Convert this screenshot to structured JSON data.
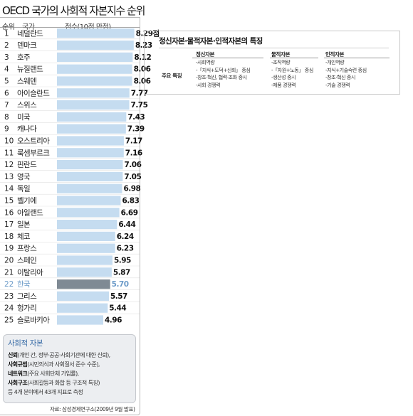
{
  "chart_data": {
    "type": "bar",
    "title": "OECD 국가의 사회적 자본지수 순위",
    "rank_header": "순위",
    "country_header": "국가",
    "score_header": "점수(10점 만점)",
    "xlim": [
      0,
      10
    ],
    "bar_color": "#c5dcf0",
    "highlight_color": "#7f8a94",
    "highlight_text_color": "#6e9cc9",
    "highlight_country": "한국",
    "rows": [
      {
        "rank": "1",
        "country": "네덜란드",
        "value": 8.29,
        "label": "8.29점"
      },
      {
        "rank": "2",
        "country": "덴마크",
        "value": 8.23,
        "label": "8.23"
      },
      {
        "rank": "3",
        "country": "호주",
        "value": 8.12,
        "label": "8.12"
      },
      {
        "rank": "4",
        "country": "뉴질랜드",
        "value": 8.06,
        "label": "8.06"
      },
      {
        "rank": "5",
        "country": "스웨덴",
        "value": 8.06,
        "label": "8.06"
      },
      {
        "rank": "6",
        "country": "아이슬란드",
        "value": 7.77,
        "label": "7.77"
      },
      {
        "rank": "7",
        "country": "스위스",
        "value": 7.75,
        "label": "7.75"
      },
      {
        "rank": "8",
        "country": "미국",
        "value": 7.43,
        "label": "7.43"
      },
      {
        "rank": "9",
        "country": "캐나다",
        "value": 7.39,
        "label": "7.39"
      },
      {
        "rank": "10",
        "country": "오스트리아",
        "value": 7.17,
        "label": "7.17"
      },
      {
        "rank": "11",
        "country": "룩셈부르크",
        "value": 7.16,
        "label": "7.16"
      },
      {
        "rank": "12",
        "country": "핀란드",
        "value": 7.06,
        "label": "7.06"
      },
      {
        "rank": "13",
        "country": "영국",
        "value": 7.05,
        "label": "7.05"
      },
      {
        "rank": "14",
        "country": "독일",
        "value": 6.98,
        "label": "6.98"
      },
      {
        "rank": "15",
        "country": "벨기에",
        "value": 6.83,
        "label": "6.83"
      },
      {
        "rank": "16",
        "country": "아일랜드",
        "value": 6.69,
        "label": "6.69"
      },
      {
        "rank": "17",
        "country": "일본",
        "value": 6.44,
        "label": "6.44"
      },
      {
        "rank": "18",
        "country": "체코",
        "value": 6.24,
        "label": "6.24"
      },
      {
        "rank": "19",
        "country": "프랑스",
        "value": 6.23,
        "label": "6.23"
      },
      {
        "rank": "20",
        "country": "스페인",
        "value": 5.95,
        "label": "5.95"
      },
      {
        "rank": "21",
        "country": "이탈리아",
        "value": 5.87,
        "label": "5.87"
      },
      {
        "rank": "22",
        "country": "한국",
        "value": 5.7,
        "label": "5.70"
      },
      {
        "rank": "23",
        "country": "그리스",
        "value": 5.57,
        "label": "5.57"
      },
      {
        "rank": "24",
        "country": "헝가리",
        "value": 5.44,
        "label": "5.44"
      },
      {
        "rank": "25",
        "country": "슬로바키아",
        "value": 4.96,
        "label": "4.96"
      }
    ]
  },
  "legend": {
    "title": "사회적 자본",
    "items": [
      {
        "term": "신뢰",
        "desc": "(개인 간, 정부·공공·사회기관에 대한 신뢰),"
      },
      {
        "term": "사회규범",
        "desc": "(시민의식과 사회질서 준수 수준),"
      },
      {
        "term": "네트워크",
        "desc": "(주요 사회단체 가입률),"
      },
      {
        "term": "사회구조",
        "desc": "(사회갈등과 화합 등 구조적 특징)"
      }
    ],
    "footer": "등 4개 분야에서 43개 지표로 측정"
  },
  "source": "자료: 삼성경제연구소(2009년 9월 발표)",
  "comparison": {
    "title": "정신자본·물적자본·인적자본의 특징",
    "row_label": "주요 특징",
    "columns": [
      {
        "header": "정신자본",
        "items": [
          "-사회역량",
          "-「지식+도덕+신뢰」 중심",
          "-창조·혁신, 협력·조화 중시",
          "-사회 경쟁력"
        ]
      },
      {
        "header": "물적자본",
        "items": [
          "-조직역량",
          "-「자원+노동」 중심",
          "-생산성 중시",
          "-제품 경쟁력"
        ]
      },
      {
        "header": "인적자본",
        "items": [
          "-개인역량",
          "-지식+기술숙련 중심",
          "-창조·혁신 중시",
          "-기술 경쟁력"
        ]
      }
    ]
  }
}
